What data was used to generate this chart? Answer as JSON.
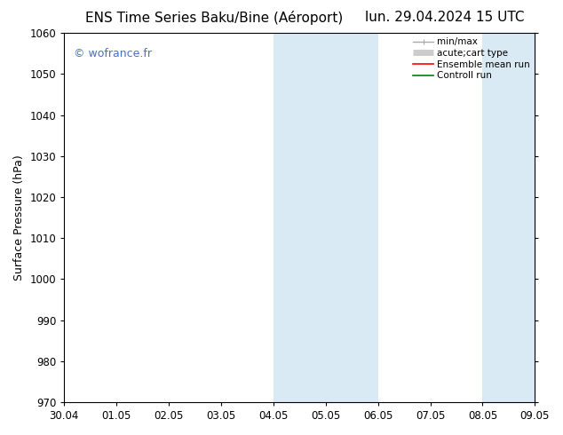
{
  "title_left": "ENS Time Series Baku/Bine (Aéroport)",
  "title_right": "lun. 29.04.2024 15 UTC",
  "ylabel": "Surface Pressure (hPa)",
  "ylim": [
    970,
    1060
  ],
  "yticks": [
    970,
    980,
    990,
    1000,
    1010,
    1020,
    1030,
    1040,
    1050,
    1060
  ],
  "xtick_labels": [
    "30.04",
    "01.05",
    "02.05",
    "03.05",
    "04.05",
    "05.05",
    "06.05",
    "07.05",
    "08.05",
    "09.05"
  ],
  "xtick_positions": [
    0,
    1,
    2,
    3,
    4,
    5,
    6,
    7,
    8,
    9
  ],
  "shaded_bands": [
    {
      "xstart": 4,
      "xend": 5
    },
    {
      "xstart": 5,
      "xend": 6
    },
    {
      "xstart": 8,
      "xend": 9
    }
  ],
  "shade_color": "#daeaf5",
  "background_color": "#ffffff",
  "watermark": "© wofrance.fr",
  "watermark_color": "#4472c4",
  "legend_entries": [
    {
      "label": "min/max",
      "color": "#aaaaaa",
      "lw": 1.0
    },
    {
      "label": "acute;cart type",
      "color": "#cccccc",
      "lw": 5.0
    },
    {
      "label": "Ensemble mean run",
      "color": "#ff0000",
      "lw": 1.2
    },
    {
      "label": "Controll run",
      "color": "#008000",
      "lw": 1.2
    }
  ],
  "spine_color": "#000000",
  "title_fontsize": 11,
  "axis_label_fontsize": 9,
  "tick_fontsize": 8.5,
  "watermark_fontsize": 9
}
